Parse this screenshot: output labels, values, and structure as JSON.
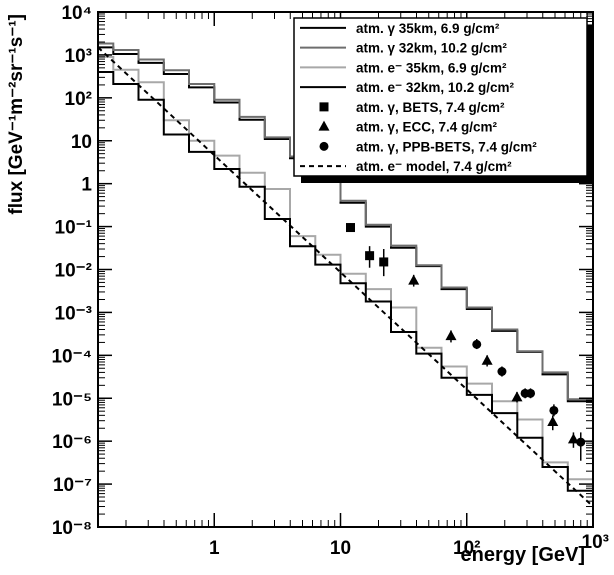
{
  "chart_data": {
    "type": "line",
    "xlabel": "energy [GeV]",
    "ylabel": "flux [GeV⁻¹m⁻²sr⁻¹s⁻¹]",
    "x_scale": "log",
    "y_scale": "log",
    "xlim": [
      0.12,
      1000
    ],
    "ylim": [
      1e-08,
      10000
    ],
    "x_ticks": [
      {
        "value": 1,
        "label": "1"
      },
      {
        "value": 10,
        "label": "10"
      },
      {
        "value": 100,
        "label": "10²"
      },
      {
        "value": 1000,
        "label": "10³"
      }
    ],
    "y_ticks": [
      {
        "value": 1e-08,
        "label": "10⁻⁸"
      },
      {
        "value": 1e-07,
        "label": "10⁻⁷"
      },
      {
        "value": 1e-06,
        "label": "10⁻⁶"
      },
      {
        "value": 1e-05,
        "label": "10⁻⁵"
      },
      {
        "value": 0.0001,
        "label": "10⁻⁴"
      },
      {
        "value": 0.001,
        "label": "10⁻³"
      },
      {
        "value": 0.01,
        "label": "10⁻²"
      },
      {
        "value": 0.1,
        "label": "10⁻¹"
      },
      {
        "value": 1,
        "label": "1"
      },
      {
        "value": 10,
        "label": "10"
      },
      {
        "value": 100,
        "label": "10²"
      },
      {
        "value": 1000,
        "label": "10³"
      },
      {
        "value": 10000,
        "label": "10⁴"
      }
    ],
    "grid": false,
    "legend_position": "top-right",
    "series": [
      {
        "name": "atm. γ 35km, 6.9 g/cm²",
        "style": "step",
        "color": "#000000",
        "dash": "solid",
        "bin_edges": [
          0.1,
          0.1585,
          0.2512,
          0.3981,
          0.631,
          1,
          1.585,
          2.512,
          3.981,
          6.31,
          10,
          15.85,
          25.12,
          39.81,
          63.1,
          100,
          158.5,
          251.2,
          398.1,
          631,
          1000
        ],
        "values": [
          1500,
          1050,
          650,
          360,
          175,
          78,
          31,
          11,
          3.9,
          1.2,
          0.36,
          0.1,
          0.032,
          0.012,
          0.0035,
          0.0012,
          0.00037,
          0.00012,
          3.6e-05,
          8.5e-06
        ]
      },
      {
        "name": "atm. γ 32km, 10.2 g/cm²",
        "style": "step",
        "color": "#6e6e6e",
        "dash": "solid",
        "bin_edges": [
          0.1,
          0.1585,
          0.2512,
          0.3981,
          0.631,
          1,
          1.585,
          2.512,
          3.981,
          6.31,
          10,
          15.85,
          25.12,
          39.81,
          63.1,
          100,
          158.5,
          251.2,
          398.1,
          631,
          1000
        ],
        "values": [
          1850,
          1300,
          780,
          440,
          210,
          90,
          36,
          12,
          4.3,
          1.35,
          0.4,
          0.11,
          0.036,
          0.0125,
          0.0038,
          0.0013,
          0.0004,
          0.000125,
          4e-05,
          9.5e-06
        ]
      },
      {
        "name": "atm. e⁻ 35km, 6.9 g/cm²",
        "style": "step",
        "color": "#a8a8a8",
        "dash": "solid",
        "bin_edges": [
          0.1,
          0.1585,
          0.2512,
          0.3981,
          0.631,
          1,
          1.585,
          2.512,
          3.981,
          6.31,
          10,
          15.85,
          25.12,
          39.81,
          63.1,
          100,
          158.5,
          251.2,
          398.1,
          631,
          1000
        ],
        "values": [
          900,
          450,
          230,
          30,
          10,
          4.5,
          1.8,
          0.75,
          0.06,
          0.022,
          0.008,
          0.0035,
          0.0013,
          0.00015,
          5.5e-05,
          2.2e-05,
          8.5e-06,
          3.2e-06,
          3.2e-07,
          1.3e-07
        ]
      },
      {
        "name": "atm. e⁻ 32km, 10.2 g/cm²",
        "style": "step",
        "color": "#000000",
        "dash": "solid",
        "bin_edges": [
          0.1,
          0.1585,
          0.2512,
          0.3981,
          0.631,
          1,
          1.585,
          2.512,
          3.981,
          6.31,
          10,
          15.85,
          25.12,
          39.81,
          63.1,
          100,
          158.5,
          251.2,
          398.1,
          631,
          1000
        ],
        "values": [
          400,
          210,
          90,
          14,
          5.5,
          2.2,
          0.85,
          0.15,
          0.035,
          0.013,
          0.0048,
          0.0018,
          0.00035,
          0.00011,
          3e-05,
          1.2e-05,
          4.5e-06,
          1.2e-06,
          2.5e-07,
          7e-08
        ]
      },
      {
        "name": "atm. e⁻ model, 7.4 g/cm²",
        "style": "line",
        "color": "#000000",
        "dash": "dashed",
        "x": [
          0.12,
          1000
        ],
        "y": [
          1500,
          3e-08
        ]
      },
      {
        "name": "atm. γ, BETS, 7.4 g/cm²",
        "style": "points",
        "marker": "square",
        "color": "#000000",
        "x": [
          12,
          17,
          22
        ],
        "y": [
          0.095,
          0.021,
          0.015
        ],
        "y_err_low": [
          0.075,
          0.011,
          0.007
        ],
        "y_err_high": [
          0.12,
          0.035,
          0.03
        ]
      },
      {
        "name": "atm. γ, ECC, 7.4 g/cm²",
        "style": "points",
        "marker": "triangle",
        "color": "#000000",
        "x": [
          38,
          75,
          145,
          250,
          480,
          700
        ],
        "y": [
          0.0055,
          0.00028,
          7.5e-05,
          1.05e-05,
          2.8e-06,
          1.1e-06
        ],
        "y_err_low": [
          0.004,
          0.0002,
          5.5e-05,
          8e-06,
          1.8e-06,
          7e-07
        ],
        "y_err_high": [
          0.0075,
          0.00038,
          0.0001,
          1.4e-05,
          4e-06,
          1.6e-06
        ]
      },
      {
        "name": "atm. γ, PPB-BETS, 7.4 g/cm²",
        "style": "points",
        "marker": "circle",
        "color": "#000000",
        "x": [
          120,
          190,
          290,
          320,
          490,
          800
        ],
        "y": [
          0.00018,
          4.2e-05,
          1.3e-05,
          1.3e-05,
          5.2e-06,
          9.5e-07
        ],
        "y_err_low": [
          0.00014,
          3.2e-05,
          1e-05,
          1e-05,
          3.8e-06,
          3.5e-07
        ],
        "y_err_high": [
          0.00024,
          5.5e-05,
          1.7e-05,
          1.7e-05,
          7.2e-06,
          1.6e-06
        ]
      }
    ]
  },
  "legend": {
    "entries": [
      {
        "label": "atm. γ 35km, 6.9 g/cm²",
        "kind": "line",
        "color": "#000000",
        "dash": "solid"
      },
      {
        "label": "atm. γ 32km, 10.2 g/cm²",
        "kind": "line",
        "color": "#6e6e6e",
        "dash": "solid"
      },
      {
        "label": "atm. e⁻ 35km, 6.9 g/cm²",
        "kind": "line",
        "color": "#a8a8a8",
        "dash": "solid"
      },
      {
        "label": "atm. e⁻ 32km, 10.2 g/cm²",
        "kind": "line",
        "color": "#000000",
        "dash": "solid"
      },
      {
        "label": "atm. γ, BETS, 7.4 g/cm²",
        "kind": "marker",
        "marker": "square",
        "color": "#000000"
      },
      {
        "label": "atm. γ, ECC, 7.4 g/cm²",
        "kind": "marker",
        "marker": "triangle",
        "color": "#000000"
      },
      {
        "label": "atm. γ, PPB-BETS, 7.4 g/cm²",
        "kind": "marker",
        "marker": "circle",
        "color": "#000000"
      },
      {
        "label": "atm. e⁻ model, 7.4 g/cm²",
        "kind": "line",
        "color": "#000000",
        "dash": "dashed"
      }
    ]
  }
}
